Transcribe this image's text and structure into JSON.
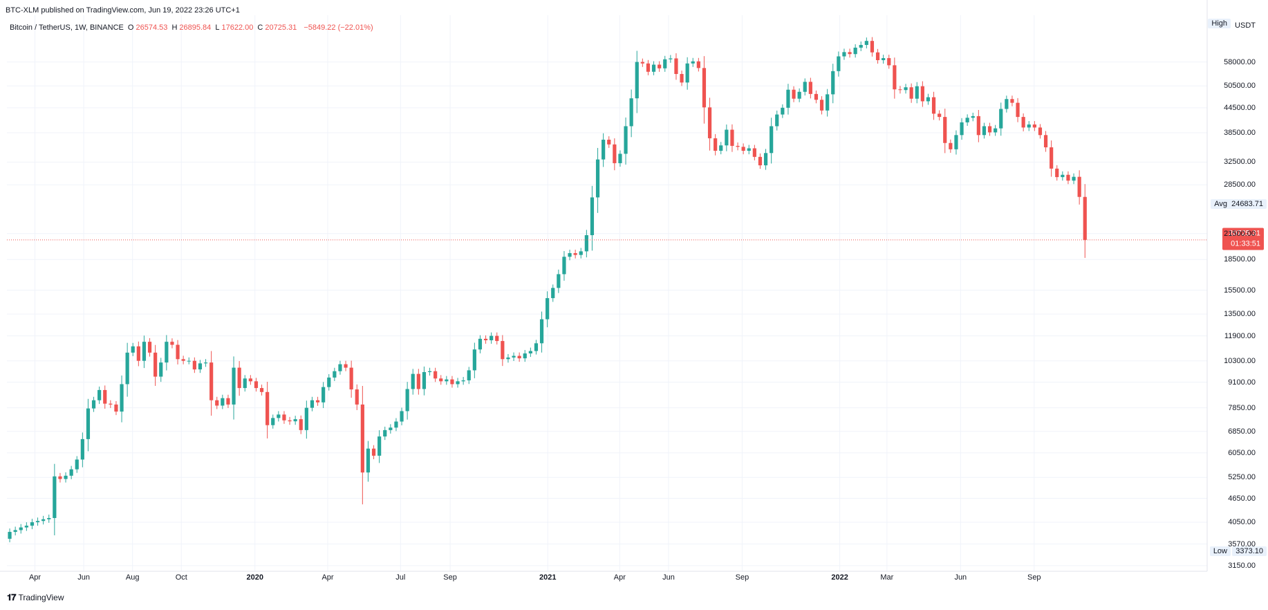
{
  "header": {
    "published": "BTC-XLM published on TradingView.com, Jun 19, 2022 23:26 UTC+1"
  },
  "legend": {
    "symbol": "Bitcoin / TetherUS, 1W, BINANCE",
    "open_label": "O",
    "open": "26574.53",
    "high_label": "H",
    "high": "26895.84",
    "low_label": "L",
    "low": "17622.00",
    "close_label": "C",
    "close": "20725.31",
    "change": "−5849.22 (−22.01%)"
  },
  "price_axis": {
    "currency": "USDT",
    "high_label": "High",
    "avg_label": "Avg",
    "avg_value": "24683.71",
    "low_label": "Low",
    "low_value": "3373.10",
    "last_price": "20725.31",
    "countdown": "01:33:51",
    "ticks": [
      "58000.00",
      "50500.00",
      "44500.00",
      "38500.00",
      "32500.00",
      "28500.00",
      "21500.00",
      "18500.00",
      "15500.00",
      "13500.00",
      "11900.00",
      "10300.00",
      "9100.00",
      "7850.00",
      "6850.00",
      "6050.00",
      "5250.00",
      "4650.00",
      "4050.00",
      "3570.00",
      "3150.00"
    ]
  },
  "time_axis": {
    "ticks": [
      {
        "label": "Apr",
        "bold": false
      },
      {
        "label": "Jun",
        "bold": false
      },
      {
        "label": "Aug",
        "bold": false
      },
      {
        "label": "Oct",
        "bold": false
      },
      {
        "label": "2020",
        "bold": true
      },
      {
        "label": "Apr",
        "bold": false
      },
      {
        "label": "Jul",
        "bold": false
      },
      {
        "label": "Sep",
        "bold": false
      },
      {
        "label": "2021",
        "bold": true
      },
      {
        "label": "Apr",
        "bold": false
      },
      {
        "label": "Jun",
        "bold": false
      },
      {
        "label": "Sep",
        "bold": false
      },
      {
        "label": "2022",
        "bold": true
      },
      {
        "label": "Mar",
        "bold": false
      },
      {
        "label": "Jun",
        "bold": false
      },
      {
        "label": "Sep",
        "bold": false
      }
    ]
  },
  "footer": {
    "brand": "TradingView"
  },
  "colors": {
    "up": "#26a69a",
    "down": "#ef5350",
    "grid": "#f0f3fa",
    "last_line": "#ef5350"
  },
  "chart_data": {
    "type": "candlestick",
    "scale": "log",
    "interval": "1W",
    "ylim": [
      3050,
      76000
    ],
    "x_start": "2019-02-25",
    "weekly_close": [
      3830,
      3870,
      3930,
      3970,
      4050,
      4080,
      4120,
      4150,
      5280,
      5200,
      5300,
      5500,
      5820,
      6550,
      7820,
      8200,
      8700,
      8040,
      8000,
      7680,
      9000,
      10800,
      11200,
      10300,
      11500,
      10800,
      9400,
      10200,
      11500,
      11300,
      10400,
      10300,
      10300,
      9800,
      10150,
      10200,
      8200,
      7950,
      8300,
      8000,
      9900,
      8800,
      9300,
      9150,
      8800,
      8600,
      7100,
      7400,
      7550,
      7300,
      7260,
      7350,
      6900,
      7850,
      8200,
      8100,
      8850,
      9350,
      9700,
      10100,
      9900,
      8730,
      8000,
      5400,
      6200,
      5950,
      6650,
      6900,
      7000,
      7250,
      7700,
      8750,
      9550,
      8750,
      9650,
      9700,
      9300,
      9150,
      9250,
      9000,
      9150,
      9200,
      9750,
      11000,
      11700,
      11600,
      11900,
      11550,
      10400,
      10500,
      10600,
      10450,
      10750,
      10900,
      11400,
      13100,
      14800,
      15700,
      17000,
      18800,
      19200,
      19000,
      19400,
      21300,
      26500,
      33000,
      37000,
      36000,
      32300,
      34100,
      40000,
      47000,
      58000,
      57500,
      54800,
      57100,
      55900,
      58900,
      59200,
      54100,
      51500,
      57500,
      58200,
      56000,
      44600,
      37300,
      34700,
      35800,
      39200,
      35700,
      35500,
      34700,
      35200,
      33500,
      31900,
      34250,
      40000,
      42800,
      44500,
      49400,
      46900,
      48800,
      51700,
      48200,
      46600,
      43800,
      48100,
      55000,
      59900,
      61400,
      60700,
      63000,
      64000,
      65500,
      61300,
      58600,
      59300,
      56900,
      49500,
      49300,
      50100,
      46900,
      50400,
      46200,
      47300,
      43000,
      42200,
      36300,
      35000,
      38000,
      40900,
      42000,
      42400,
      38000,
      40000,
      38600,
      39500,
      44200,
      46800,
      45800,
      42200,
      39700,
      40400,
      39700,
      38000,
      35400,
      31300,
      29800,
      30200,
      29200,
      29850,
      26574,
      20725
    ],
    "series_open": 3680
  }
}
